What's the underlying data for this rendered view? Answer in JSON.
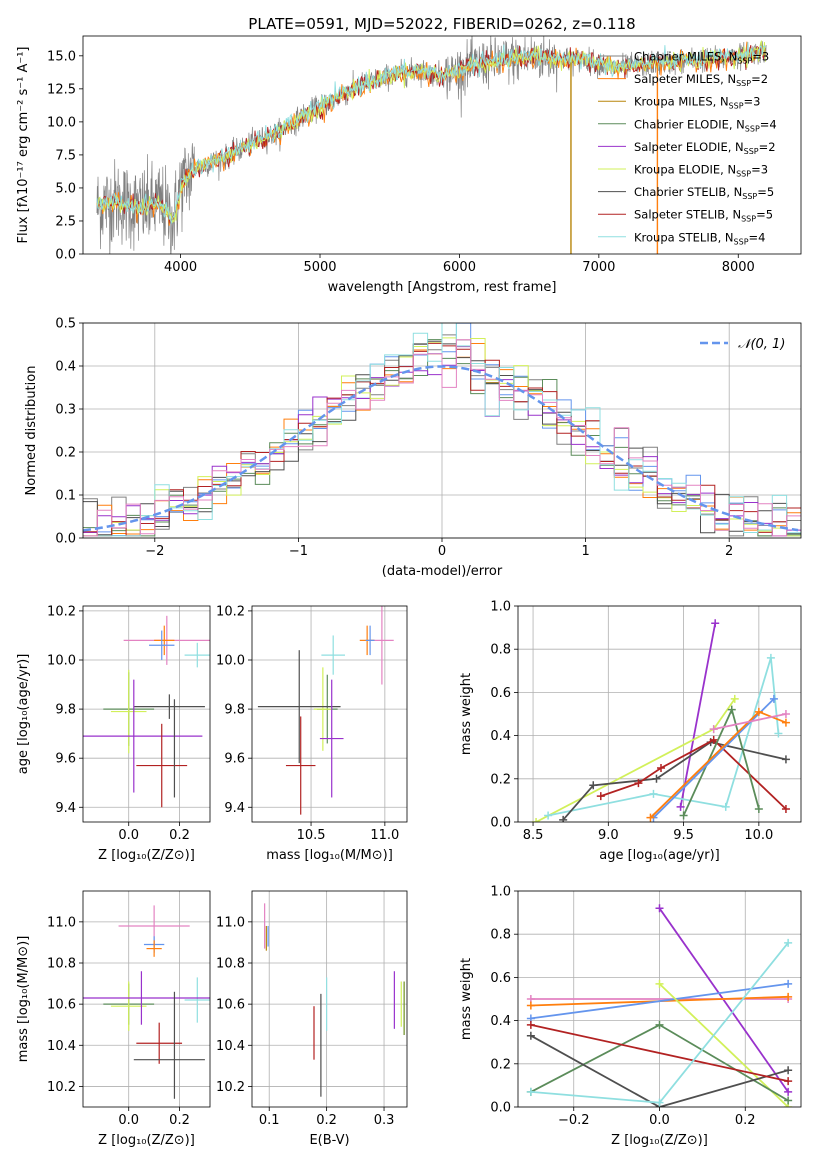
{
  "colors": {
    "grey": "#808080",
    "orange": "#ff7f0e",
    "blue": "#6495ed",
    "green": "#5b8c5a",
    "purple": "#9932cc",
    "lime": "#d2f05a",
    "dark": "#4f4f4f",
    "red": "#b22222",
    "cyan": "#8fdfe0",
    "pink": "#e383c2",
    "gold": "#b8860b",
    "olive": "#6b8e23",
    "fitline": "#6495ed"
  },
  "chart_data": [
    {
      "id": "spectrum",
      "type": "line",
      "title": "PLATE=0591, MJD=52022, FIBERID=0262, z=0.118",
      "xlabel": "wavelength [Angstrom, rest frame]",
      "ylabel": "Flux [fλ10⁻¹⁷ erg cm⁻² s⁻¹ A⁻¹]",
      "xlim": [
        3300,
        8450
      ],
      "ylim": [
        0,
        16.5
      ],
      "xticks": [
        4000,
        5000,
        6000,
        7000,
        8000
      ],
      "yticks": [
        0.0,
        2.5,
        5.0,
        7.5,
        10.0,
        12.5,
        15.0
      ],
      "x_range_data": [
        3400,
        8200
      ],
      "continuum": {
        "x": [
          3400,
          3550,
          3700,
          3850,
          3950,
          4000,
          4100,
          4300,
          4500,
          4700,
          4900,
          5100,
          5300,
          5500,
          5700,
          5900,
          6100,
          6300,
          6500,
          6700,
          6900,
          7100,
          7300,
          7500,
          7700,
          7900,
          8100,
          8200
        ],
        "y": [
          3.6,
          4.0,
          3.4,
          3.8,
          2.5,
          5.2,
          6.5,
          7.2,
          8.3,
          9.2,
          10.6,
          11.7,
          12.8,
          13.5,
          13.9,
          13.5,
          14.3,
          14.6,
          14.9,
          14.8,
          14.7,
          14.1,
          14.3,
          14.5,
          14.7,
          14.8,
          15.2,
          15.4
        ]
      },
      "legend": [
        {
          "label": "Chabrier MILES, N",
          "sub": "SSP",
          "tail": "=3",
          "color": "grey"
        },
        {
          "label": "Salpeter MILES, N",
          "sub": "SSP",
          "tail": "=2",
          "color": "orange"
        },
        {
          "label": "Kroupa MILES, N",
          "sub": "SSP",
          "tail": "=3",
          "color": "gold"
        },
        {
          "label": "Chabrier ELODIE, N",
          "sub": "SSP",
          "tail": "=4",
          "color": "green"
        },
        {
          "label": "Salpeter ELODIE, N",
          "sub": "SSP",
          "tail": "=2",
          "color": "purple"
        },
        {
          "label": "Kroupa ELODIE, N",
          "sub": "SSP",
          "tail": "=3",
          "color": "lime"
        },
        {
          "label": "Chabrier STELIB, N",
          "sub": "SSP",
          "tail": "=5",
          "color": "dark"
        },
        {
          "label": "Salpeter STELIB, N",
          "sub": "SSP",
          "tail": "=5",
          "color": "red"
        },
        {
          "label": "Kroupa STELIB, N",
          "sub": "SSP",
          "tail": "=4",
          "color": "cyan"
        }
      ],
      "spikes": [
        {
          "x": 6800,
          "color": "gold"
        },
        {
          "x": 7420,
          "color": "orange"
        }
      ]
    },
    {
      "id": "residuals",
      "type": "histogram",
      "xlabel": "(data-model)/error",
      "ylabel": "Normed distribution",
      "xlim": [
        -2.5,
        2.5
      ],
      "ylim": [
        0,
        0.5
      ],
      "xticks": [
        -2,
        -1,
        0,
        1,
        2
      ],
      "yticks": [
        0.0,
        0.1,
        0.2,
        0.3,
        0.4,
        0.5
      ],
      "legend_label": "𝒩(0, 1)",
      "bin_width": 0.1,
      "series_colors": [
        "grey",
        "orange",
        "blue",
        "green",
        "purple",
        "lime",
        "dark",
        "red",
        "cyan",
        "pink"
      ]
    },
    {
      "id": "age-vs-Z",
      "type": "errorbar",
      "xlabel": "Z [log₁₀(Z/Z⊙)]",
      "ylabel": "age  [log₁₀(age/yr)]",
      "xlim": [
        -0.18,
        0.32
      ],
      "ylim": [
        9.34,
        10.22
      ],
      "xticks": [
        0.0,
        0.2
      ],
      "yticks": [
        9.4,
        9.6,
        9.8,
        10.0,
        10.2
      ],
      "points": [
        {
          "x": 0.15,
          "y": 10.08,
          "xerr": 0.17,
          "yerr": 0.1,
          "color": "pink"
        },
        {
          "x": 0.14,
          "y": 10.08,
          "xerr": 0.04,
          "yerr": 0.06,
          "color": "orange"
        },
        {
          "x": 0.13,
          "y": 10.06,
          "xerr": 0.05,
          "yerr": 0.06,
          "color": "blue"
        },
        {
          "x": 0.27,
          "y": 10.02,
          "xerr": 0.05,
          "yerr": 0.05,
          "color": "cyan"
        },
        {
          "x": 0.0,
          "y": 9.8,
          "xerr": 0.1,
          "yerr": 0.15,
          "color": "green"
        },
        {
          "x": 0.0,
          "y": 9.79,
          "xerr": 0.07,
          "yerr": 0.17,
          "color": "lime"
        },
        {
          "x": 0.16,
          "y": 9.81,
          "xerr": 0.14,
          "yerr": 0.05,
          "color": "dark"
        },
        {
          "x": 0.02,
          "y": 9.69,
          "xerr": 0.27,
          "yerr": 0.23,
          "color": "purple"
        },
        {
          "x": 0.13,
          "y": 9.57,
          "xerr": 0.1,
          "yerr": 0.17,
          "color": "red"
        },
        {
          "x": 0.18,
          "y": 9.64,
          "xerr": 0.0,
          "yerr": 0.2,
          "color": "dark"
        }
      ]
    },
    {
      "id": "age-vs-mass",
      "type": "errorbar",
      "xlabel": "mass [log₁₀(M/M⊙)]",
      "ylabel": "",
      "xlim": [
        10.1,
        11.15
      ],
      "ylim": [
        9.34,
        10.22
      ],
      "xticks": [
        10.5,
        11.0
      ],
      "yticks": [
        9.4,
        9.6,
        9.8,
        10.0,
        10.2
      ],
      "points": [
        {
          "x": 10.98,
          "y": 10.08,
          "xerr": 0.08,
          "yerr": 0.18,
          "color": "pink"
        },
        {
          "x": 10.88,
          "y": 10.08,
          "xerr": 0.05,
          "yerr": 0.06,
          "color": "orange"
        },
        {
          "x": 10.9,
          "y": 10.08,
          "xerr": 0.03,
          "yerr": 0.06,
          "color": "blue"
        },
        {
          "x": 10.65,
          "y": 10.02,
          "xerr": 0.08,
          "yerr": 0.08,
          "color": "cyan"
        },
        {
          "x": 10.61,
          "y": 9.8,
          "xerr": 0.07,
          "yerr": 0.14,
          "color": "green"
        },
        {
          "x": 10.58,
          "y": 9.8,
          "xerr": 0.06,
          "yerr": 0.17,
          "color": "lime"
        },
        {
          "x": 10.42,
          "y": 9.81,
          "xerr": 0.28,
          "yerr": 0.23,
          "color": "dark"
        },
        {
          "x": 10.64,
          "y": 9.68,
          "xerr": 0.08,
          "yerr": 0.24,
          "color": "purple"
        },
        {
          "x": 10.43,
          "y": 9.57,
          "xerr": 0.1,
          "yerr": 0.2,
          "color": "red"
        }
      ]
    },
    {
      "id": "massweight-vs-age",
      "type": "line",
      "xlabel": "age  [log₁₀(age/yr)]",
      "ylabel": "mass weight",
      "xlim": [
        8.4,
        10.28
      ],
      "ylim": [
        0.0,
        1.0
      ],
      "xticks": [
        8.5,
        9.0,
        9.5,
        10.0
      ],
      "yticks": [
        0.0,
        0.2,
        0.4,
        0.6,
        0.8,
        1.0
      ],
      "series": [
        {
          "color": "purple",
          "x": [
            9.48,
            9.71
          ],
          "y": [
            0.07,
            0.92
          ]
        },
        {
          "color": "lime",
          "x": [
            8.52,
            9.7,
            9.84
          ],
          "y": [
            0.0,
            0.43,
            0.57
          ]
        },
        {
          "color": "cyan",
          "x": [
            8.6,
            9.3,
            9.78,
            10.08,
            10.13
          ],
          "y": [
            0.03,
            0.13,
            0.07,
            0.76,
            0.41
          ]
        },
        {
          "color": "dark",
          "x": [
            8.7,
            8.9,
            9.32,
            9.68,
            10.18
          ],
          "y": [
            0.01,
            0.17,
            0.2,
            0.37,
            0.29
          ]
        },
        {
          "color": "red",
          "x": [
            8.95,
            9.2,
            9.35,
            9.7,
            10.18
          ],
          "y": [
            0.12,
            0.18,
            0.25,
            0.38,
            0.06
          ]
        },
        {
          "color": "green",
          "x": [
            9.5,
            9.82,
            10.0
          ],
          "y": [
            0.03,
            0.52,
            0.06
          ]
        },
        {
          "color": "blue",
          "x": [
            9.3,
            10.1
          ],
          "y": [
            0.02,
            0.57
          ]
        },
        {
          "color": "orange",
          "x": [
            9.28,
            10.0,
            10.18
          ],
          "y": [
            0.02,
            0.51,
            0.46
          ]
        },
        {
          "color": "pink",
          "x": [
            9.7,
            10.18
          ],
          "y": [
            0.43,
            0.5
          ]
        }
      ]
    },
    {
      "id": "mass-vs-Z",
      "type": "errorbar",
      "xlabel": "Z [log₁₀(Z/Z⊙)]",
      "ylabel": "mass [log₁₀(M/M⊙)]",
      "xlim": [
        -0.18,
        0.32
      ],
      "ylim": [
        10.1,
        11.15
      ],
      "xticks": [
        0.0,
        0.2
      ],
      "yticks": [
        10.2,
        10.4,
        10.6,
        10.8,
        11.0
      ],
      "points": [
        {
          "x": 0.1,
          "y": 10.98,
          "xerr": 0.14,
          "yerr": 0.1,
          "color": "pink"
        },
        {
          "x": 0.1,
          "y": 10.89,
          "xerr": 0.04,
          "yerr": 0.04,
          "color": "blue"
        },
        {
          "x": 0.1,
          "y": 10.87,
          "xerr": 0.03,
          "yerr": 0.04,
          "color": "orange"
        },
        {
          "x": 0.27,
          "y": 10.62,
          "xerr": 0.05,
          "yerr": 0.11,
          "color": "cyan"
        },
        {
          "x": 0.0,
          "y": 10.6,
          "xerr": 0.1,
          "yerr": 0.1,
          "color": "green"
        },
        {
          "x": 0.0,
          "y": 10.59,
          "xerr": 0.07,
          "yerr": 0.12,
          "color": "lime"
        },
        {
          "x": 0.05,
          "y": 10.63,
          "xerr": 0.27,
          "yerr": 0.13,
          "color": "purple"
        },
        {
          "x": 0.12,
          "y": 10.41,
          "xerr": 0.09,
          "yerr": 0.1,
          "color": "red"
        },
        {
          "x": 0.16,
          "y": 10.33,
          "xerr": 0.14,
          "yerr": 0.0,
          "color": "dark"
        },
        {
          "x": 0.18,
          "y": 10.4,
          "xerr": 0.0,
          "yerr": 0.26,
          "color": "dark"
        }
      ]
    },
    {
      "id": "mass-vs-EBV",
      "type": "errorbar",
      "xlabel": "E(B-V)",
      "ylabel": "",
      "xlim": [
        0.07,
        0.34
      ],
      "ylim": [
        10.1,
        11.15
      ],
      "xticks": [
        0.1,
        0.2,
        0.3
      ],
      "yticks": [
        10.2,
        10.4,
        10.6,
        10.8,
        11.0
      ],
      "points": [
        {
          "x": 0.092,
          "y": 10.98,
          "xerr": 0.0,
          "yerr": 0.11,
          "color": "pink"
        },
        {
          "x": 0.095,
          "y": 10.92,
          "xerr": 0.0,
          "yerr": 0.06,
          "color": "gold"
        },
        {
          "x": 0.098,
          "y": 10.93,
          "xerr": 0.0,
          "yerr": 0.05,
          "color": "blue"
        },
        {
          "x": 0.2,
          "y": 10.6,
          "xerr": 0.0,
          "yerr": 0.13,
          "color": "cyan"
        },
        {
          "x": 0.19,
          "y": 10.4,
          "xerr": 0.0,
          "yerr": 0.25,
          "color": "dark"
        },
        {
          "x": 0.178,
          "y": 10.46,
          "xerr": 0.0,
          "yerr": 0.13,
          "color": "red"
        },
        {
          "x": 0.318,
          "y": 10.62,
          "xerr": 0.0,
          "yerr": 0.14,
          "color": "purple"
        },
        {
          "x": 0.33,
          "y": 10.6,
          "xerr": 0.0,
          "yerr": 0.11,
          "color": "lime"
        },
        {
          "x": 0.335,
          "y": 10.58,
          "xerr": 0.0,
          "yerr": 0.13,
          "color": "olive"
        }
      ]
    },
    {
      "id": "massweight-vs-Z",
      "type": "line",
      "xlabel": "Z [log₁₀(Z/Z⊙)]",
      "ylabel": "mass weight",
      "xlim": [
        -0.33,
        0.33
      ],
      "ylim": [
        0.0,
        1.0
      ],
      "xticks": [
        -0.2,
        0.0,
        0.2
      ],
      "yticks": [
        0.0,
        0.2,
        0.4,
        0.6,
        0.8,
        1.0
      ],
      "series": [
        {
          "color": "purple",
          "x": [
            0.0,
            0.3
          ],
          "y": [
            0.92,
            0.07
          ]
        },
        {
          "color": "pink",
          "x": [
            -0.3,
            0.3
          ],
          "y": [
            0.5,
            0.5
          ]
        },
        {
          "color": "orange",
          "x": [
            -0.3,
            0.3
          ],
          "y": [
            0.47,
            0.51
          ]
        },
        {
          "color": "blue",
          "x": [
            -0.3,
            0.3
          ],
          "y": [
            0.41,
            0.57
          ]
        },
        {
          "color": "lime",
          "x": [
            0.0,
            0.3
          ],
          "y": [
            0.57,
            0.0
          ]
        },
        {
          "color": "green",
          "x": [
            -0.3,
            0.0,
            0.3
          ],
          "y": [
            0.07,
            0.38,
            0.03
          ]
        },
        {
          "color": "dark",
          "x": [
            -0.3,
            0.0,
            0.3
          ],
          "y": [
            0.33,
            0.0,
            0.17
          ]
        },
        {
          "color": "red",
          "x": [
            -0.3,
            0.3
          ],
          "y": [
            0.38,
            0.12
          ]
        },
        {
          "color": "cyan",
          "x": [
            -0.3,
            0.0,
            0.3
          ],
          "y": [
            0.07,
            0.02,
            0.76
          ]
        }
      ]
    }
  ]
}
